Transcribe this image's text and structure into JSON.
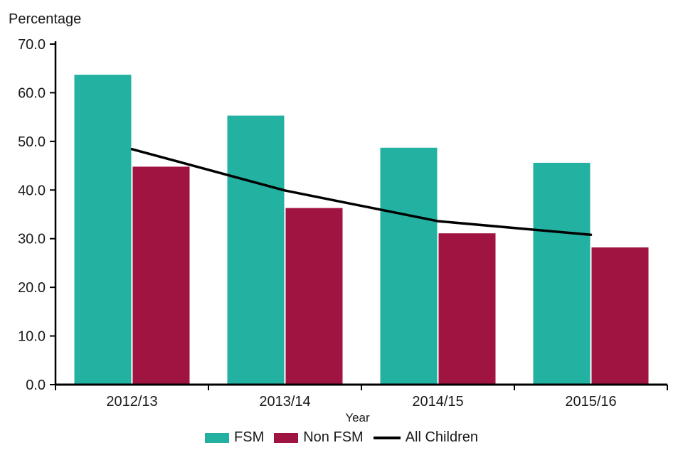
{
  "chart_data": {
    "type": "bar",
    "title": "",
    "y_axis_title": "Percentage",
    "xlabel": "Year",
    "categories": [
      "2012/13",
      "2013/14",
      "2014/15",
      "2015/16"
    ],
    "series": [
      {
        "name": "FSM",
        "type": "bar",
        "color": "#23B2A2",
        "values": [
          63.7,
          55.3,
          48.7,
          45.6
        ]
      },
      {
        "name": "Non FSM",
        "type": "bar",
        "color": "#A01441",
        "values": [
          44.8,
          36.3,
          31.1,
          28.2
        ]
      },
      {
        "name": "All Children",
        "type": "line",
        "color": "#000000",
        "values": [
          48.4,
          39.9,
          33.6,
          30.8
        ]
      }
    ],
    "ylim": [
      0,
      70
    ],
    "ytick_step": 10,
    "ytick_labels": [
      "0.0",
      "10.0",
      "20.0",
      "30.0",
      "40.0",
      "50.0",
      "60.0",
      "70.0"
    ],
    "grid": false,
    "legend_position": "bottom",
    "axis_color": "#000000",
    "text_color": "#1a1a1a"
  }
}
